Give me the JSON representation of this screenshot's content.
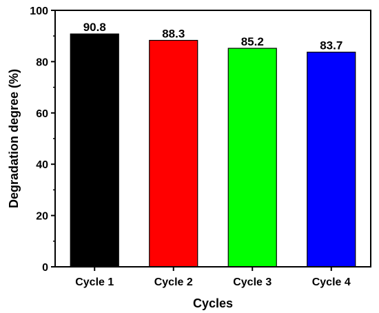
{
  "chart_data": {
    "type": "bar",
    "categories": [
      "Cycle 1",
      "Cycle 2",
      "Cycle 3",
      "Cycle 4"
    ],
    "values": [
      90.8,
      88.3,
      85.2,
      83.7
    ],
    "data_labels": [
      "90.8",
      "88.3",
      "85.2",
      "83.7"
    ],
    "colors": [
      "#000000",
      "#ff0000",
      "#00ff00",
      "#0000ff"
    ],
    "title": "",
    "xlabel": "Cycles",
    "ylabel": "Degradation degree (%)",
    "ylim": [
      0,
      100
    ],
    "yticks": [
      0,
      20,
      40,
      60,
      80,
      100
    ],
    "grid": false,
    "legend": "none"
  }
}
